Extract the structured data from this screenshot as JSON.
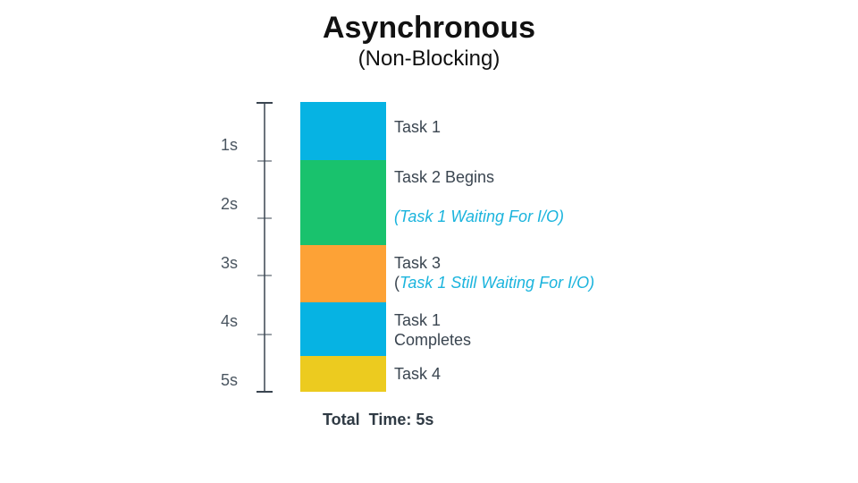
{
  "title": "Asynchronous",
  "subtitle": "(Non-Blocking)",
  "time_axis": {
    "tick_labels": [
      "1s",
      "2s",
      "3s",
      "4s",
      "5s"
    ]
  },
  "tasks": [
    {
      "label": "Task 1",
      "note": "",
      "color": "#06b3e3"
    },
    {
      "label": "Task 2 Begins",
      "note": "(Task 1 Waiting For I/O)",
      "color": "#19c26d"
    },
    {
      "label": "Task 3",
      "note_prefix": "(",
      "note": "Task 1 Still Waiting For I/O)",
      "color": "#fda236"
    },
    {
      "label_line1": "Task 1",
      "label_line2": "Completes",
      "color": "#06b3e3"
    },
    {
      "label": "Task 4",
      "color": "#eccb1f"
    }
  ],
  "total": "Total  Time: 5s"
}
